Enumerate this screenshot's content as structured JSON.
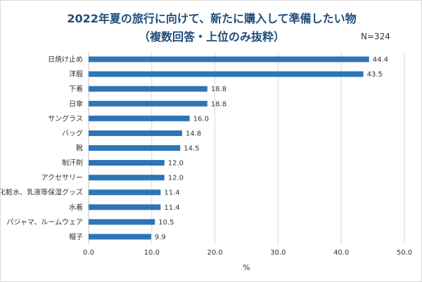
{
  "chart_data": {
    "type": "bar",
    "orientation": "horizontal",
    "title": "2022年夏の旅行に向けて、新たに購入して準備したい物",
    "subtitle": "（複数回答・上位のみ抜粋）",
    "sample_label": "N=324",
    "categories": [
      "日焼け止め",
      "洋服",
      "下着",
      "日傘",
      "サングラス",
      "バッグ",
      "靴",
      "制汗剤",
      "アクセサリー",
      "化粧水、乳液等保湿グッズ",
      "水着",
      "パジャマ、ルームウェア",
      "帽子"
    ],
    "values": [
      44.4,
      43.5,
      18.8,
      18.8,
      16.0,
      14.8,
      14.5,
      12.0,
      12.0,
      11.4,
      11.4,
      10.5,
      9.9
    ],
    "value_labels": [
      "44.4",
      "43.5",
      "18.8",
      "18.8",
      "16.0",
      "14.8",
      "14.5",
      "12.0",
      "12.0",
      "11.4",
      "11.4",
      "10.5",
      "9.9"
    ],
    "xlabel": "%",
    "xlim": [
      0,
      50
    ],
    "xticks": [
      "0.0",
      "10.0",
      "20.0",
      "30.0",
      "40.0",
      "50.0"
    ],
    "grid": "vertical",
    "bar_color": "#2e75b6"
  }
}
